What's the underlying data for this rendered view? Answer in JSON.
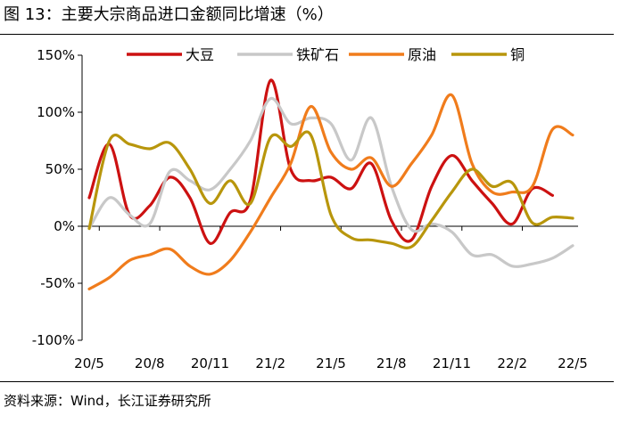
{
  "figure": {
    "title": "图 13：主要大宗商品进口金额同比增速（%）",
    "source": "资料来源：Wind，长江证券研究所"
  },
  "chart_data": {
    "type": "line",
    "title": "主要大宗商品进口金额同比增速（%）",
    "xlabel": "",
    "ylabel": "",
    "x": [
      "20/5",
      "20/6",
      "20/7",
      "20/8",
      "20/9",
      "20/10",
      "20/11",
      "20/12",
      "21/1",
      "21/2",
      "21/3",
      "21/4",
      "21/5",
      "21/6",
      "21/7",
      "21/8",
      "21/9",
      "21/10",
      "21/11",
      "21/12",
      "22/1",
      "22/2",
      "22/3",
      "22/4",
      "22/5"
    ],
    "xticks": [
      "20/5",
      "20/8",
      "20/11",
      "21/2",
      "21/5",
      "21/8",
      "21/11",
      "22/2",
      "22/5"
    ],
    "yticks": [
      "150%",
      "100%",
      "50%",
      "0%",
      "-50%",
      "-100%"
    ],
    "ylim": [
      -100,
      150
    ],
    "legend_position": "top",
    "series": [
      {
        "name": "大豆",
        "color": "#cc1111",
        "values": [
          25,
          72,
          10,
          18,
          43,
          25,
          -15,
          12,
          23,
          128,
          50,
          40,
          43,
          33,
          55,
          5,
          -12,
          35,
          62,
          40,
          20,
          2,
          33,
          27,
          null
        ]
      },
      {
        "name": "铁矿石",
        "color": "#c8c8c8",
        "values": [
          -2,
          25,
          10,
          2,
          48,
          40,
          32,
          50,
          75,
          112,
          90,
          95,
          90,
          58,
          95,
          35,
          -3,
          2,
          -5,
          -25,
          -25,
          -35,
          -33,
          -28,
          -17
        ]
      },
      {
        "name": "原油",
        "color": "#f07c1c",
        "values": [
          -55,
          -45,
          -30,
          -25,
          -20,
          -35,
          -42,
          -30,
          -5,
          25,
          55,
          105,
          65,
          50,
          60,
          35,
          55,
          80,
          115,
          55,
          30,
          30,
          35,
          85,
          80
        ]
      },
      {
        "name": "铜",
        "color": "#b8960c",
        "values": [
          -2,
          75,
          72,
          68,
          73,
          50,
          20,
          40,
          20,
          78,
          70,
          80,
          10,
          -10,
          -12,
          -15,
          -18,
          5,
          30,
          50,
          35,
          38,
          3,
          8,
          7
        ]
      }
    ]
  }
}
